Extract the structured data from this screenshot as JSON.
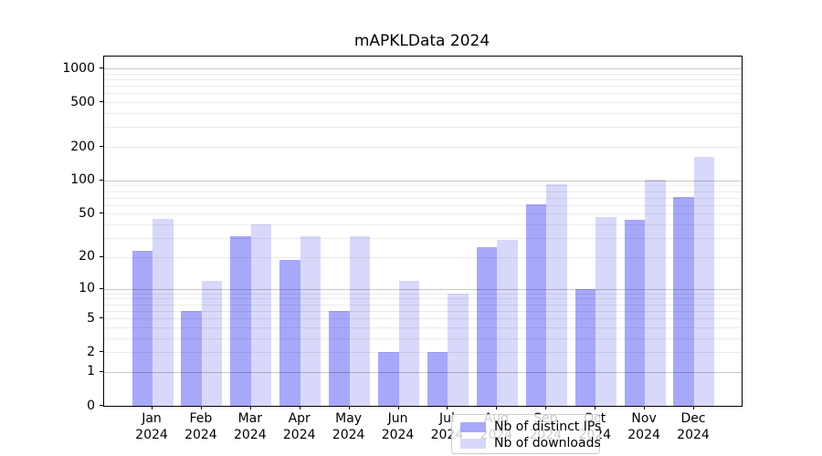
{
  "chart_data": {
    "type": "bar",
    "title": "mAPKLData 2024",
    "categories": [
      "Jan",
      "Feb",
      "Mar",
      "Apr",
      "May",
      "Jun",
      "Jul",
      "Aug",
      "Sep",
      "Oct",
      "Nov",
      "Dec"
    ],
    "xtick_year": "2024",
    "series": [
      {
        "name": "Nb of distinct IPs",
        "color": "#a8a8fa",
        "values": [
          23,
          6,
          31,
          19,
          6,
          2,
          2,
          25,
          61,
          10,
          44,
          71
        ]
      },
      {
        "name": "Nb of downloads",
        "color": "#d8d8fa",
        "values": [
          45,
          12,
          40,
          31,
          31,
          12,
          9,
          29,
          93,
          47,
          102,
          163
        ]
      }
    ],
    "yscale": "log1p",
    "ylabel": "",
    "xlabel": "",
    "yticks": [
      0,
      1,
      2,
      5,
      10,
      20,
      50,
      100,
      200,
      500,
      1000
    ],
    "minor_gridlines": [
      2,
      3,
      4,
      5,
      6,
      7,
      8,
      9,
      20,
      30,
      40,
      50,
      60,
      70,
      80,
      90,
      200,
      300,
      400,
      500,
      600,
      700,
      800,
      900
    ],
    "major_gridlines": [
      1,
      10,
      100,
      1000
    ],
    "ylim": [
      0,
      1275
    ],
    "grid": true,
    "legend_position": "lower center",
    "text_color": "#000000",
    "background_color": "#ffffff"
  }
}
